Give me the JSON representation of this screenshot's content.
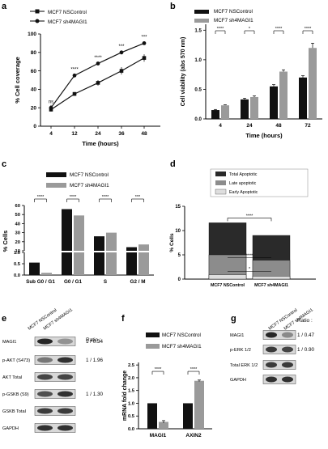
{
  "panels": {
    "a": {
      "letter": "a",
      "legend": [
        "MCF7 NSControl",
        "MCF7 sh4MAGI1"
      ]
    },
    "b": {
      "letter": "b",
      "legend": [
        "MCF7 NSControl",
        "MCF7 sh4MAGI1"
      ]
    },
    "c": {
      "letter": "c",
      "legend": [
        "MCF7 NSControl",
        "MCF7 sh4MAGI1"
      ]
    },
    "d": {
      "letter": "d",
      "legend": [
        "Total Apoptotic",
        "Late apoptotic",
        "Early Apoptotic"
      ]
    },
    "e": {
      "letter": "e",
      "lanes": [
        "MCF7 NSControl",
        "MCF7 sh4MAGI1"
      ],
      "ratio_header": "Ratio :",
      "rows": [
        {
          "label": "MAGI1",
          "ratio": "1 / 0.34"
        },
        {
          "label": "p-AKT (S473)",
          "ratio": "1 / 1.96"
        },
        {
          "label": "AKT Total",
          "ratio": ""
        },
        {
          "label": "p-GSKB (S9)",
          "ratio": "1 / 1.30"
        },
        {
          "label": "GSKB Total",
          "ratio": ""
        },
        {
          "label": "GAPDH",
          "ratio": ""
        }
      ]
    },
    "f": {
      "letter": "f",
      "legend": [
        "MCF7 NSControl",
        "MCF7 sh4MAGI1"
      ]
    },
    "g": {
      "letter": "g",
      "lanes": [
        "MCF7 NSControl",
        "MCF7 sh4MAGI1"
      ],
      "ratio_header": "Ratio :",
      "rows": [
        {
          "label": "MAGI1",
          "ratio": "1 / 0.47"
        },
        {
          "label": "p-ERK 1/2",
          "ratio": "1 / 0.90"
        },
        {
          "label": "Total ERK 1/2",
          "ratio": ""
        },
        {
          "label": "GAPDH",
          "ratio": ""
        }
      ]
    }
  },
  "colors": {
    "control": "#111111",
    "knockdown": "#9a9a9a",
    "late": "#8c8c8c",
    "early": "#dedede",
    "sig": "#222222"
  },
  "chart_data": [
    {
      "id": "a",
      "type": "line",
      "x": [
        4,
        12,
        24,
        36,
        48
      ],
      "series": [
        {
          "name": "MCF7 NSControl",
          "values": [
            18,
            35,
            47,
            60,
            74
          ],
          "err": [
            2,
            2,
            3,
            4,
            4
          ]
        },
        {
          "name": "MCF7 sh4MAGI1",
          "values": [
            20,
            55,
            68,
            80,
            90
          ],
          "err": [
            3,
            2,
            2,
            2,
            1
          ]
        }
      ],
      "xlabel": "Time (hours)",
      "ylabel": "% Cell coverage",
      "ylim": [
        0,
        100
      ],
      "yticks": [
        0,
        20,
        40,
        60,
        80,
        100
      ],
      "sig": [
        "ns",
        "****",
        "****",
        "***",
        "***"
      ]
    },
    {
      "id": "b",
      "type": "bar",
      "categories": [
        "4",
        "24",
        "48",
        "72"
      ],
      "series": [
        {
          "name": "MCF7 NSControl",
          "values": [
            0.15,
            0.33,
            0.55,
            0.7
          ],
          "err": [
            0.01,
            0.02,
            0.03,
            0.03
          ]
        },
        {
          "name": "MCF7 sh4MAGI1",
          "values": [
            0.23,
            0.37,
            0.8,
            1.2
          ],
          "err": [
            0.01,
            0.02,
            0.03,
            0.08
          ]
        }
      ],
      "xlabel": "Time (hours)",
      "ylabel": "Cell viability (abs 570 nm)",
      "ylim": [
        0,
        1.6
      ],
      "yticks": [
        0.0,
        0.5,
        1.0,
        1.5
      ],
      "sig": [
        "****",
        "*",
        "****",
        "****"
      ]
    },
    {
      "id": "c",
      "type": "bar",
      "categories": [
        "Sub G0 / G1",
        "G0 / G1",
        "S",
        "G2 / M"
      ],
      "series": [
        {
          "name": "MCF7 NSControl",
          "values": [
            0.55,
            56,
            26,
            14
          ],
          "err": [
            0.05,
            0.3,
            0.3,
            0.4
          ]
        },
        {
          "name": "MCF7 sh4MAGI1",
          "values": [
            0.1,
            49,
            30,
            17
          ],
          "err": [
            0.02,
            0.3,
            0.3,
            0.4
          ]
        }
      ],
      "ylabel": "% Cells",
      "yticks_low": [
        0.0,
        0.5,
        1.0
      ],
      "yticks_high": [
        10,
        20,
        30,
        40,
        50,
        60
      ],
      "sig": [
        "****",
        "****",
        "****",
        "***"
      ]
    },
    {
      "id": "d",
      "type": "bar",
      "categories": [
        "MCF7 NSControl",
        "MCF7 sh4MAGI1"
      ],
      "stack": [
        {
          "name": "Early Apoptotic",
          "values": [
            0.9,
            0.6
          ]
        },
        {
          "name": "Late apoptotic",
          "values": [
            5.0,
            3.9
          ]
        },
        {
          "name": "Total Apoptotic",
          "values": [
            11.6,
            9.0
          ]
        }
      ],
      "ylabel": "% Cells",
      "ylim": [
        0,
        15
      ],
      "yticks": [
        0,
        5,
        10,
        15
      ],
      "sig": [
        "****",
        "****",
        "*"
      ]
    },
    {
      "id": "f",
      "type": "bar",
      "categories": [
        "MAGI1",
        "AXIN2"
      ],
      "series": [
        {
          "name": "MCF7 NSControl",
          "values": [
            1.0,
            1.0
          ],
          "err": [
            0,
            0
          ]
        },
        {
          "name": "MCF7 sh4MAGI1",
          "values": [
            0.27,
            1.88
          ],
          "err": [
            0.05,
            0.03
          ]
        }
      ],
      "ylabel": "mRNA fold change",
      "ylim": [
        0,
        2.6
      ],
      "yticks": [
        0.0,
        0.5,
        1.0,
        1.5,
        2.0,
        2.5
      ],
      "sig": [
        "****",
        "****"
      ]
    }
  ]
}
